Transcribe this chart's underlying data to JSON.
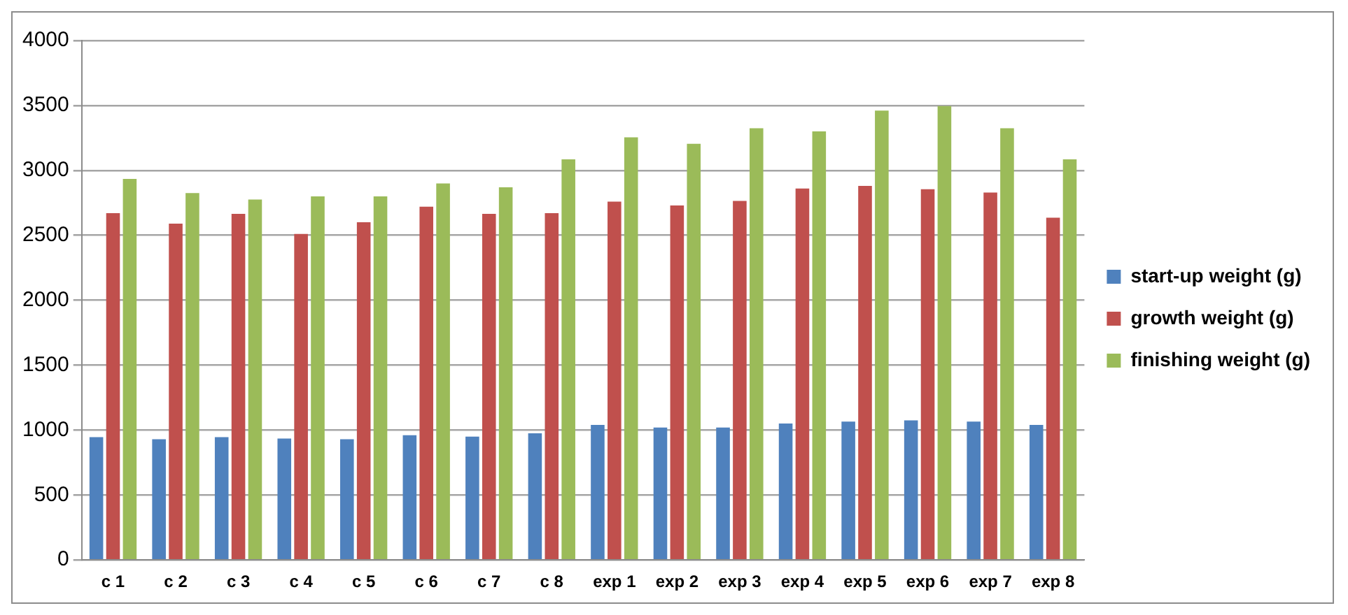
{
  "chart_data": {
    "type": "bar",
    "categories": [
      "c 1",
      "c 2",
      "c 3",
      "c 4",
      "c 5",
      "c 6",
      "c 7",
      "c 8",
      "exp 1",
      "exp 2",
      "exp 3",
      "exp 4",
      "exp 5",
      "exp 6",
      "exp 7",
      "exp 8"
    ],
    "series": [
      {
        "name": "start-up weight (g)",
        "color": "#4f81bd",
        "values": [
          945,
          930,
          945,
          935,
          930,
          960,
          950,
          975,
          1040,
          1020,
          1020,
          1050,
          1065,
          1075,
          1065,
          1040
        ]
      },
      {
        "name": "growth weight (g)",
        "color": "#c0504d",
        "values": [
          2670,
          2590,
          2665,
          2510,
          2600,
          2720,
          2665,
          2670,
          2760,
          2730,
          2765,
          2860,
          2880,
          2855,
          2830,
          2635
        ]
      },
      {
        "name": "finishing weight (g)",
        "color": "#9bbb59",
        "values": [
          2935,
          2825,
          2775,
          2800,
          2800,
          2900,
          2870,
          3085,
          3255,
          3205,
          3325,
          3300,
          3460,
          3495,
          3325,
          3085
        ]
      }
    ],
    "ylim": [
      0,
      4000
    ],
    "yticks": [
      0,
      500,
      1000,
      1500,
      2000,
      2500,
      3000,
      3500,
      4000
    ],
    "grid": "y",
    "legend": "right"
  }
}
